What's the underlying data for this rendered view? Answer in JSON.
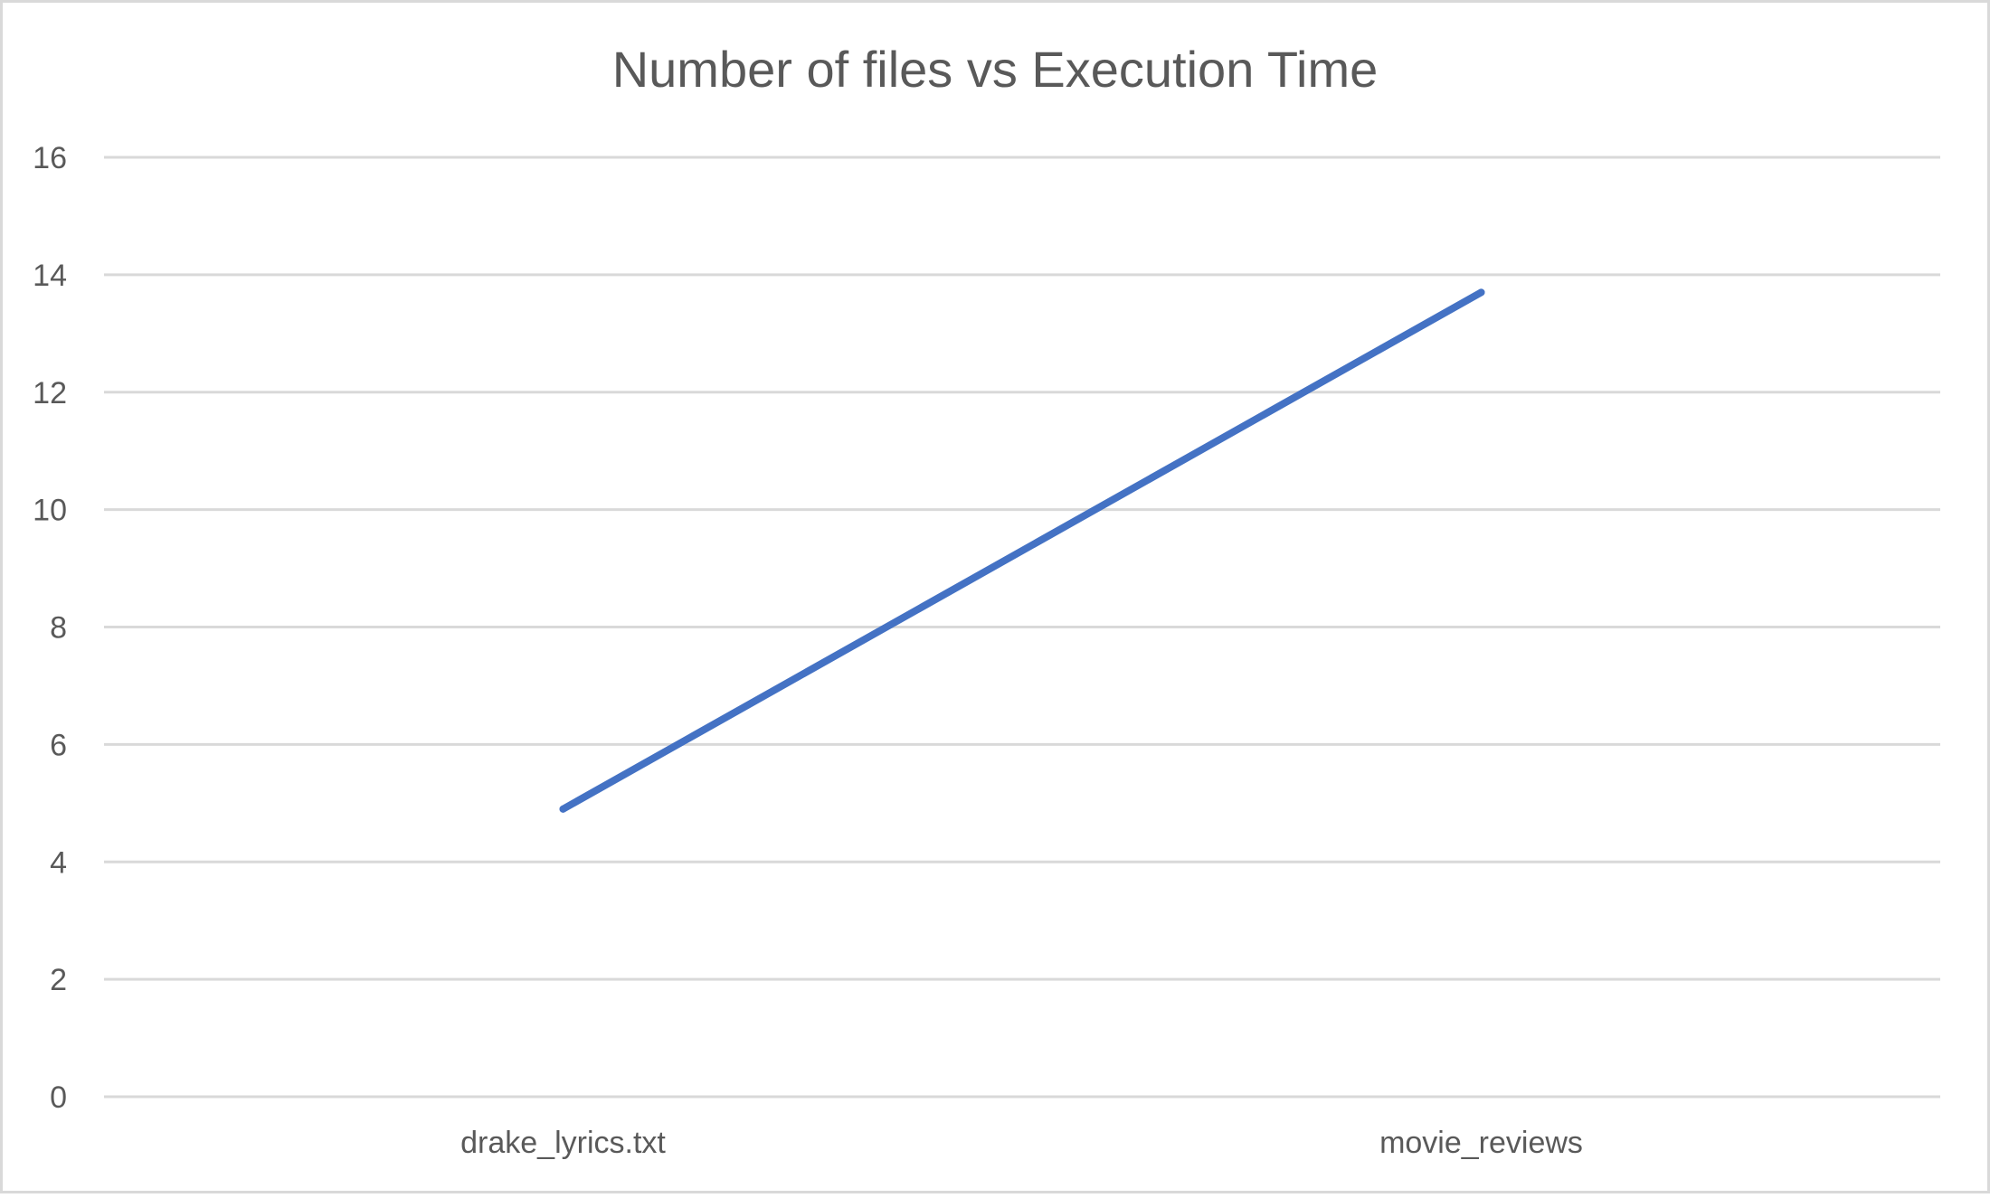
{
  "chart_data": {
    "type": "line",
    "title": "Number of files vs Execution Time",
    "xlabel": "",
    "ylabel": "",
    "categories": [
      "drake_lyrics.txt",
      "movie_reviews"
    ],
    "series": [
      {
        "values": [
          4.9,
          13.7
        ],
        "color": "#4472C4"
      }
    ],
    "ylim": [
      0,
      16
    ],
    "yticks": [
      0,
      2,
      4,
      6,
      8,
      10,
      12,
      14,
      16
    ],
    "grid": true,
    "legend": "none"
  },
  "colors": {
    "gridline": "#d9d9d9",
    "text": "#595959",
    "border": "#d9d9d9"
  }
}
